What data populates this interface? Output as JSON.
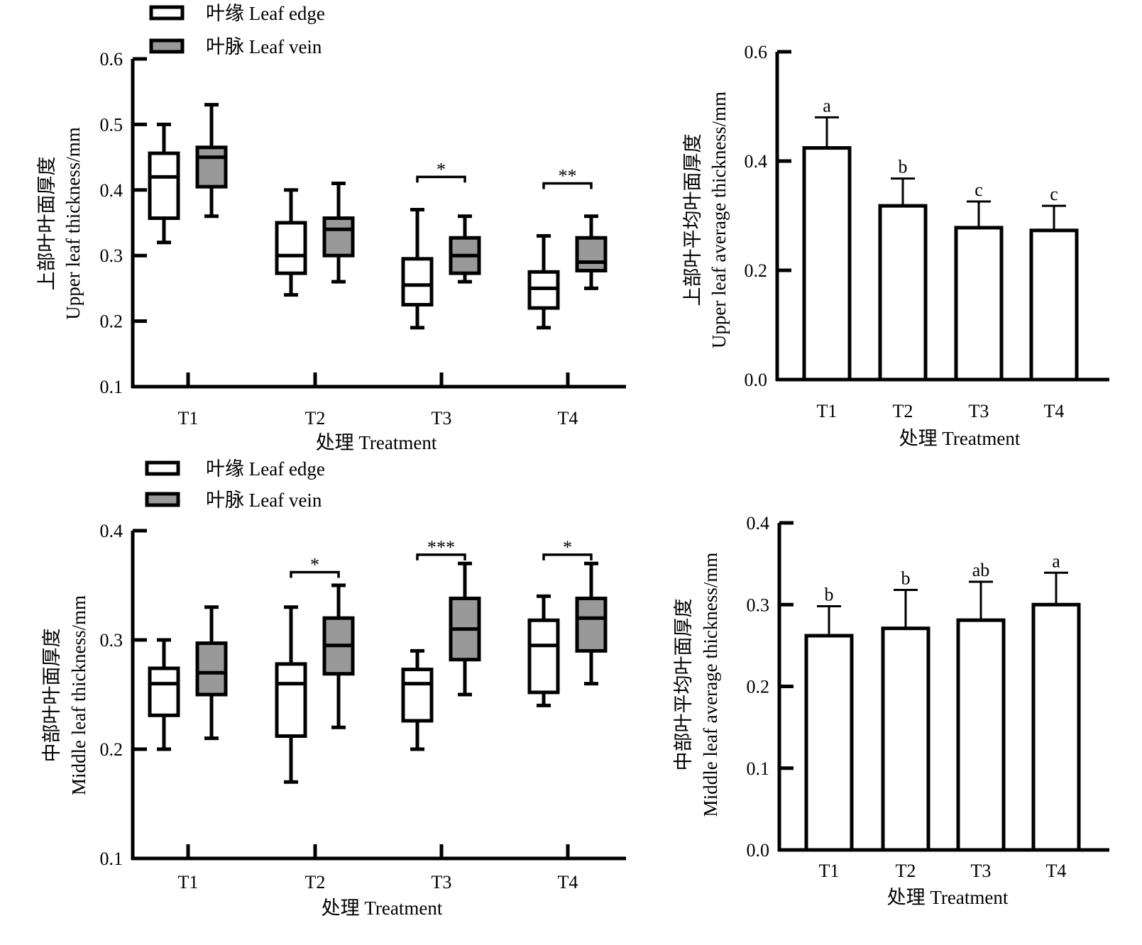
{
  "chart_data": [
    {
      "type": "box",
      "title": "",
      "xlabel": "处理 Treatment",
      "ylabel_cn": "上部叶叶面厚度",
      "ylabel": "Upper leaf thickness/mm",
      "ylim": [
        0.1,
        0.6
      ],
      "yticks": [
        "0.1",
        "0.2",
        "0.3",
        "0.4",
        "0.5",
        "0.6"
      ],
      "categories": [
        "T1",
        "T2",
        "T3",
        "T4"
      ],
      "legend": [
        "叶缘 Leaf edge",
        "叶脉 Leaf vein"
      ],
      "legend_position": "top-left",
      "series": [
        {
          "name": "叶缘 Leaf edge",
          "color": "#ffffff",
          "boxes": [
            {
              "min": 0.32,
              "q1": 0.357,
              "median": 0.42,
              "q3": 0.456,
              "max": 0.5
            },
            {
              "min": 0.24,
              "q1": 0.273,
              "median": 0.3,
              "q3": 0.35,
              "max": 0.4
            },
            {
              "min": 0.19,
              "q1": 0.225,
              "median": 0.255,
              "q3": 0.295,
              "max": 0.37
            },
            {
              "min": 0.19,
              "q1": 0.22,
              "median": 0.25,
              "q3": 0.275,
              "max": 0.33
            }
          ]
        },
        {
          "name": "叶脉 Leaf vein",
          "color": "#999999",
          "boxes": [
            {
              "min": 0.36,
              "q1": 0.405,
              "median": 0.45,
              "q3": 0.465,
              "max": 0.53
            },
            {
              "min": 0.26,
              "q1": 0.3,
              "median": 0.34,
              "q3": 0.357,
              "max": 0.41
            },
            {
              "min": 0.26,
              "q1": 0.273,
              "median": 0.3,
              "q3": 0.327,
              "max": 0.36
            },
            {
              "min": 0.25,
              "q1": 0.277,
              "median": 0.29,
              "q3": 0.327,
              "max": 0.36
            }
          ]
        }
      ],
      "significance": [
        {
          "category": "T3",
          "label": "*",
          "y": 0.42
        },
        {
          "category": "T4",
          "label": "**",
          "y": 0.41
        }
      ]
    },
    {
      "type": "bar",
      "xlabel": "处理 Treatment",
      "ylabel_cn": "上部叶平均叶面厚度",
      "ylabel": "Upper leaf average thickness/mm",
      "ylim": [
        0.0,
        0.6
      ],
      "yticks": [
        "0.0",
        "0.2",
        "0.4",
        "0.6"
      ],
      "categories": [
        "T1",
        "T2",
        "T3",
        "T4"
      ],
      "values": [
        0.424,
        0.318,
        0.278,
        0.273
      ],
      "errors": [
        0.056,
        0.05,
        0.048,
        0.045
      ],
      "letters": [
        "a",
        "b",
        "c",
        "c"
      ]
    },
    {
      "type": "box",
      "xlabel": "处理 Treatment",
      "ylabel_cn": "中部叶叶面厚度",
      "ylabel": "Middle leaf thickness/mm",
      "ylim": [
        0.1,
        0.4
      ],
      "yticks": [
        "0.1",
        "0.2",
        "0.3",
        "0.4"
      ],
      "categories": [
        "T1",
        "T2",
        "T3",
        "T4"
      ],
      "legend": [
        "叶缘 Leaf edge",
        "叶脉 Leaf vein"
      ],
      "legend_position": "top-left",
      "series": [
        {
          "name": "叶缘 Leaf edge",
          "color": "#ffffff",
          "boxes": [
            {
              "min": 0.2,
              "q1": 0.231,
              "median": 0.26,
              "q3": 0.274,
              "max": 0.3
            },
            {
              "min": 0.17,
              "q1": 0.212,
              "median": 0.26,
              "q3": 0.278,
              "max": 0.33
            },
            {
              "min": 0.2,
              "q1": 0.226,
              "median": 0.26,
              "q3": 0.273,
              "max": 0.29
            },
            {
              "min": 0.24,
              "q1": 0.252,
              "median": 0.295,
              "q3": 0.318,
              "max": 0.34
            }
          ]
        },
        {
          "name": "叶脉 Leaf vein",
          "color": "#999999",
          "boxes": [
            {
              "min": 0.21,
              "q1": 0.25,
              "median": 0.27,
              "q3": 0.297,
              "max": 0.33
            },
            {
              "min": 0.22,
              "q1": 0.269,
              "median": 0.295,
              "q3": 0.32,
              "max": 0.35
            },
            {
              "min": 0.25,
              "q1": 0.282,
              "median": 0.31,
              "q3": 0.338,
              "max": 0.37
            },
            {
              "min": 0.26,
              "q1": 0.29,
              "median": 0.32,
              "q3": 0.338,
              "max": 0.37
            }
          ]
        }
      ],
      "significance": [
        {
          "category": "T2",
          "label": "*",
          "y": 0.362
        },
        {
          "category": "T3",
          "label": "***",
          "y": 0.378
        },
        {
          "category": "T4",
          "label": "*",
          "y": 0.378
        }
      ]
    },
    {
      "type": "bar",
      "xlabel": "处理 Treatment",
      "ylabel_cn": "中部叶平均叶面厚度",
      "ylabel": "Middle leaf average thickness/mm",
      "ylim": [
        0.0,
        0.4
      ],
      "yticks": [
        "0.0",
        "0.1",
        "0.2",
        "0.3",
        "0.4"
      ],
      "categories": [
        "T1",
        "T2",
        "T3",
        "T4"
      ],
      "values": [
        0.262,
        0.271,
        0.281,
        0.3
      ],
      "errors": [
        0.036,
        0.047,
        0.047,
        0.039
      ],
      "letters": [
        "b",
        "b",
        "ab",
        "a"
      ]
    }
  ]
}
